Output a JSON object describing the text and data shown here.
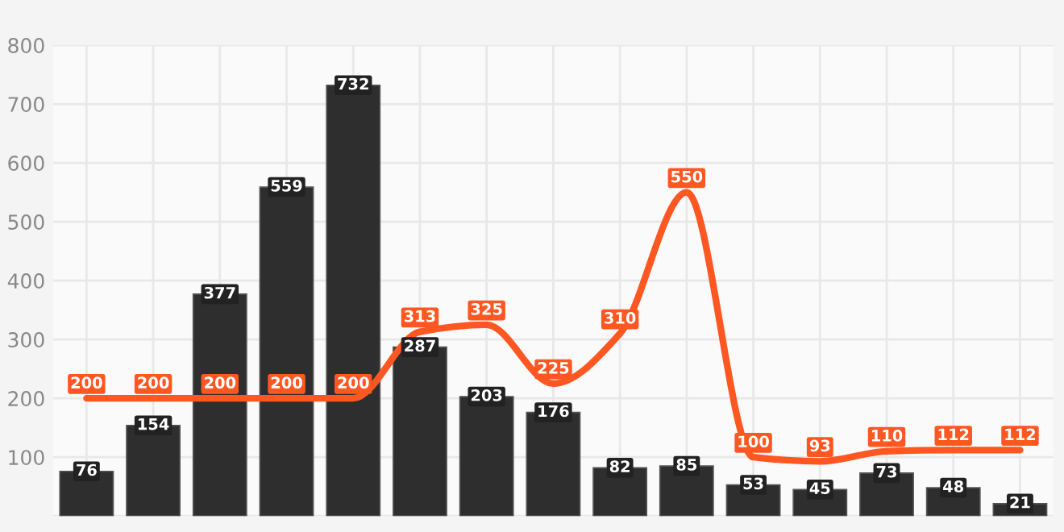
{
  "chart_data": {
    "type": "bar",
    "categories": [
      null,
      null,
      null,
      null,
      null,
      null,
      null,
      null,
      null,
      null,
      null,
      null,
      null,
      null,
      null
    ],
    "series": [
      {
        "color": "#2e2e2e",
        "values": [
          76,
          154,
          377,
          559,
          732,
          287,
          203,
          176,
          82,
          85,
          53,
          45,
          73,
          48,
          21
        ]
      },
      {
        "type": "line",
        "color": "#ff5722",
        "values": [
          200,
          200,
          200,
          200,
          200,
          313,
          325,
          225,
          310,
          550,
          100,
          93,
          110,
          112,
          112
        ]
      }
    ],
    "ylim": [
      0,
      800
    ],
    "yticks": [
      {
        "value": 0,
        "label": null
      },
      100,
      200,
      300,
      400,
      500,
      600,
      700,
      800
    ],
    "grid": true,
    "data_labels": true,
    "line_style": "solid"
  }
}
